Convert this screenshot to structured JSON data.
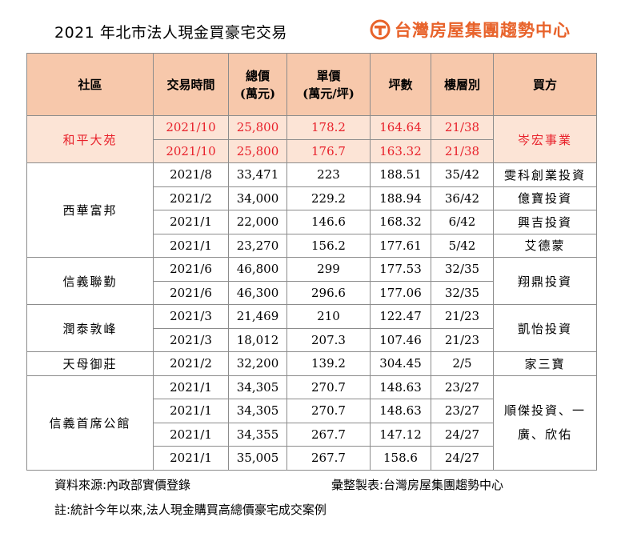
{
  "title": "2021 年北市法人現金買豪宅交易",
  "brand": {
    "name": "台灣房屋集團趨勢中心",
    "color": "#e8632b"
  },
  "headers": {
    "community": "社區",
    "date": "交易時間",
    "total_line1": "總價",
    "total_line2": "(萬元)",
    "unit_line1": "單價",
    "unit_line2": "(萬元/坪)",
    "area": "坪數",
    "floor": "樓層別",
    "buyer": "買方"
  },
  "groups": [
    {
      "community": "和平大苑",
      "buyer": "岑宏事業",
      "highlight": true,
      "rows": [
        {
          "date": "2021/10",
          "total": "25,800",
          "unit": "178.2",
          "area": "164.64",
          "floor": "21/38"
        },
        {
          "date": "2021/10",
          "total": "25,800",
          "unit": "176.7",
          "area": "163.32",
          "floor": "21/38"
        }
      ]
    },
    {
      "community": "西華富邦",
      "rows": [
        {
          "date": "2021/8",
          "total": "33,471",
          "unit": "223",
          "area": "188.51",
          "floor": "35/42",
          "buyer": "雯科創業投資"
        },
        {
          "date": "2021/2",
          "total": "34,000",
          "unit": "229.2",
          "area": "188.94",
          "floor": "36/42",
          "buyer": "億寶投資"
        },
        {
          "date": "2021/1",
          "total": "22,000",
          "unit": "146.6",
          "area": "168.32",
          "floor": "6/42",
          "buyer": "興吉投資"
        },
        {
          "date": "2021/1",
          "total": "23,270",
          "unit": "156.2",
          "area": "177.61",
          "floor": "5/42",
          "buyer": "艾德蒙"
        }
      ]
    },
    {
      "community": "信義聯勤",
      "buyer": "翔鼎投資",
      "rows": [
        {
          "date": "2021/6",
          "total": "46,800",
          "unit": "299",
          "area": "177.53",
          "floor": "32/35"
        },
        {
          "date": "2021/6",
          "total": "46,300",
          "unit": "296.6",
          "area": "177.06",
          "floor": "32/35"
        }
      ]
    },
    {
      "community": "潤泰敦峰",
      "buyer": "凱怡投資",
      "rows": [
        {
          "date": "2021/3",
          "total": "21,469",
          "unit": "210",
          "area": "122.47",
          "floor": "21/23"
        },
        {
          "date": "2021/3",
          "total": "18,012",
          "unit": "207.3",
          "area": "107.46",
          "floor": "21/23"
        }
      ]
    },
    {
      "community": "天母御莊",
      "buyer": "家三寶",
      "rows": [
        {
          "date": "2021/2",
          "total": "32,200",
          "unit": "139.2",
          "area": "304.45",
          "floor": "2/5"
        }
      ]
    },
    {
      "community": "信義首席公館",
      "buyer_line1": "順傑投資、一",
      "buyer_line2": "廣、欣佑",
      "rows": [
        {
          "date": "2021/1",
          "total": "34,305",
          "unit": "270.7",
          "area": "148.63",
          "floor": "23/27"
        },
        {
          "date": "2021/1",
          "total": "34,305",
          "unit": "270.7",
          "area": "148.63",
          "floor": "23/27"
        },
        {
          "date": "2021/1",
          "total": "34,355",
          "unit": "267.7",
          "area": "147.12",
          "floor": "24/27"
        },
        {
          "date": "2021/1",
          "total": "35,005",
          "unit": "267.7",
          "area": "158.6",
          "floor": "24/27"
        }
      ]
    }
  ],
  "footer": {
    "source": "資料來源:內政部實價登錄",
    "compiled": "彙整製表:台灣房屋集團趨勢中心",
    "note": "註:統計今年以來,法人現金購買高總價豪宅成交案例"
  },
  "colors": {
    "header_bg": "#f7c8ab",
    "highlight_bg": "#fce4d6",
    "highlight_text": "#e8202a"
  }
}
